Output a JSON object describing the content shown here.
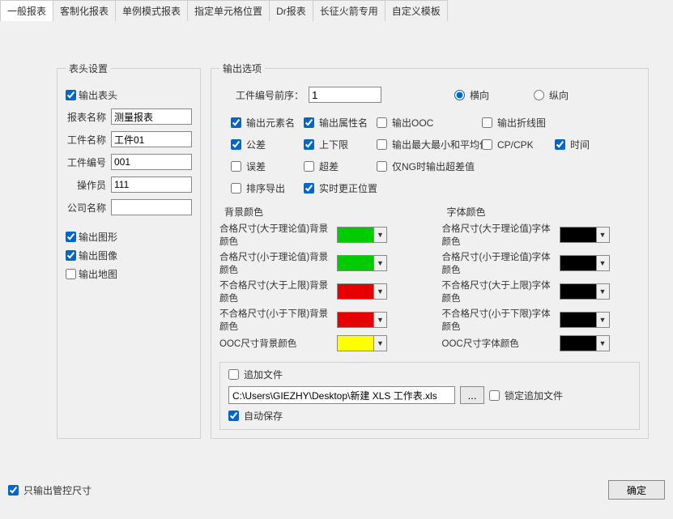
{
  "tabs": {
    "t0": "一般报表",
    "t1": "客制化报表",
    "t2": "单例模式报表",
    "t3": "指定单元格位置",
    "t4": "Dr报表",
    "t5": "长征火箭专用",
    "t6": "自定义模板"
  },
  "header": {
    "legend": "表头设置",
    "output_header_chk": true,
    "output_header_label": "输出表头",
    "fields": {
      "report_name": {
        "label": "报表名称",
        "value": "测量报表"
      },
      "part_name": {
        "label": "工件名称",
        "value": "工件01"
      },
      "part_no": {
        "label": "工件编号",
        "value": "001"
      },
      "operator": {
        "label": "操作员",
        "value": "111"
      },
      "company": {
        "label": "公司名称",
        "value": ""
      }
    },
    "extras": {
      "graphic": {
        "label": "输出图形",
        "chk": true
      },
      "image": {
        "label": "输出图像",
        "chk": true
      },
      "map": {
        "label": "输出地图",
        "chk": false
      }
    }
  },
  "output": {
    "legend": "输出选项",
    "prefix_label": "工件编号前序：",
    "prefix_value": "1",
    "orient": {
      "landscape": "横向",
      "portrait": "纵向",
      "value": "landscape"
    },
    "checks": {
      "elem_name": {
        "label": "输出元素名",
        "chk": true
      },
      "attr_name": {
        "label": "输出属性名",
        "chk": true
      },
      "ooc": {
        "label": "输出OOC",
        "chk": false
      },
      "polyline": {
        "label": "输出折线图",
        "chk": false
      },
      "tol": {
        "label": "公差",
        "chk": true
      },
      "limits": {
        "label": "上下限",
        "chk": true
      },
      "minmaxavg": {
        "label": "输出最大最小和平均值",
        "chk": false
      },
      "cpcpk": {
        "label": "CP/CPK",
        "chk": false
      },
      "time": {
        "label": "时间",
        "chk": true
      },
      "err": {
        "label": "误差",
        "chk": false
      },
      "overtol": {
        "label": "超差",
        "chk": false
      },
      "ngonly": {
        "label": "仅NG时输出超差值",
        "chk": false
      },
      "sort": {
        "label": "排序导出",
        "chk": false
      },
      "realtime": {
        "label": "实时更正位置",
        "chk": true
      }
    },
    "colors": {
      "bg_title": "背景颜色",
      "font_title": "字体颜色",
      "rows": {
        "r1": {
          "bg_label": "合格尺寸(大于理论值)背景颜色",
          "font_label": "合格尺寸(大于理论值)字体颜色",
          "bg": "#00cc00",
          "font": "#000000"
        },
        "r2": {
          "bg_label": "合格尺寸(小于理论值)背景颜色",
          "font_label": "合格尺寸(小于理论值)字体颜色",
          "bg": "#00cc00",
          "font": "#000000"
        },
        "r3": {
          "bg_label": "不合格尺寸(大于上限)背景颜色",
          "font_label": "不合格尺寸(大于上限)字体颜色",
          "bg": "#e60000",
          "font": "#000000"
        },
        "r4": {
          "bg_label": "不合格尺寸(小于下限)背景颜色",
          "font_label": "不合格尺寸(小于下限)字体颜色",
          "bg": "#e60000",
          "font": "#000000"
        },
        "r5": {
          "bg_label": "OOC尺寸背景颜色",
          "font_label": "OOC尺寸字体颜色",
          "bg": "#ffff00",
          "font": "#000000"
        }
      }
    },
    "file": {
      "append_chk": false,
      "append_label": "追加文件",
      "path": "C:\\Users\\GIEZHY\\Desktop\\新建 XLS 工作表.xls",
      "browse": "...",
      "lock_chk": false,
      "lock_label": "锁定追加文件",
      "autosave_chk": true,
      "autosave_label": "自动保存"
    }
  },
  "footer": {
    "ctrl_only_chk": true,
    "ctrl_only_label": "只输出管控尺寸",
    "ok": "确定"
  },
  "ui": {
    "dropdown_glyph": "▼"
  }
}
